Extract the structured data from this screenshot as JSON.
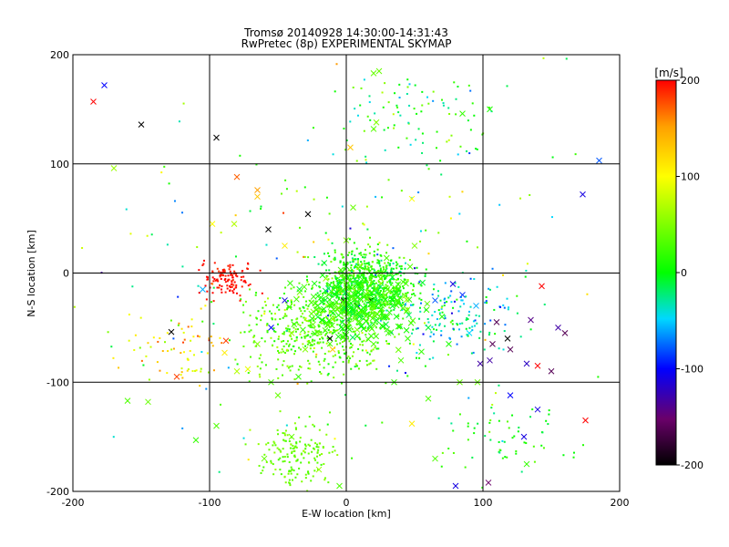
{
  "chart_data": {
    "type": "scatter",
    "title": "Tromsø 20140928 14:30:00-14:31:43",
    "subtitle": "RwPretec (8p) EXPERIMENTAL SKYMAP",
    "xlabel": "E-W location [km]",
    "ylabel": "N-S location [km]",
    "xlim": [
      -200,
      200
    ],
    "ylim": [
      -200,
      200
    ],
    "x_ticks": [
      -200,
      -100,
      0,
      100,
      200
    ],
    "y_ticks": [
      -200,
      -100,
      0,
      100,
      200
    ],
    "grid": true,
    "colorbar": {
      "label": "[m/s]",
      "range": [
        -200,
        200
      ],
      "ticks": [
        -200,
        -100,
        0,
        100,
        200
      ],
      "colormap": "black-purple-blue-cyan-green-yellow-red"
    },
    "marker_types": [
      "dot",
      "x"
    ],
    "points_x": [
      {
        "x": -185,
        "y": 157,
        "v": 200
      },
      {
        "x": -177,
        "y": 172,
        "v": -100
      },
      {
        "x": -150,
        "y": 136,
        "v": -200
      },
      {
        "x": -95,
        "y": 124,
        "v": -200
      },
      {
        "x": -80,
        "y": 88,
        "v": 170
      },
      {
        "x": -65,
        "y": 76,
        "v": 150
      },
      {
        "x": -65,
        "y": 70,
        "v": 130
      },
      {
        "x": -28,
        "y": 54,
        "v": -200
      },
      {
        "x": -98,
        "y": 45,
        "v": 100
      },
      {
        "x": -82,
        "y": 45,
        "v": 70
      },
      {
        "x": -57,
        "y": 40,
        "v": -200
      },
      {
        "x": -45,
        "y": 25,
        "v": 110
      },
      {
        "x": 3,
        "y": 115,
        "v": 130
      },
      {
        "x": 22,
        "y": 138,
        "v": 50
      },
      {
        "x": 48,
        "y": 68,
        "v": 100
      },
      {
        "x": 24,
        "y": 185,
        "v": 40
      },
      {
        "x": 20,
        "y": 183,
        "v": 40
      },
      {
        "x": -170,
        "y": 96,
        "v": 60
      },
      {
        "x": 20,
        "y": 132,
        "v": 30
      },
      {
        "x": 185,
        "y": 103,
        "v": -80
      },
      {
        "x": 173,
        "y": 72,
        "v": -110
      },
      {
        "x": 143,
        "y": -12,
        "v": 200
      },
      {
        "x": -128,
        "y": -54,
        "v": -200
      },
      {
        "x": -88,
        "y": -62,
        "v": 180
      },
      {
        "x": -89,
        "y": -73,
        "v": 110
      },
      {
        "x": -124,
        "y": -95,
        "v": 180
      },
      {
        "x": -160,
        "y": -117,
        "v": 30
      },
      {
        "x": -145,
        "y": -118,
        "v": 40
      },
      {
        "x": -110,
        "y": -153,
        "v": 20
      },
      {
        "x": -95,
        "y": -140,
        "v": 30
      },
      {
        "x": -50,
        "y": -112,
        "v": 40
      },
      {
        "x": -72,
        "y": -88,
        "v": 90
      },
      {
        "x": -12,
        "y": -60,
        "v": -200
      },
      {
        "x": -10,
        "y": -70,
        "v": 130
      },
      {
        "x": -5,
        "y": -17,
        "v": 110
      },
      {
        "x": -2,
        "y": -25,
        "v": -180
      },
      {
        "x": 8,
        "y": -30,
        "v": -200
      },
      {
        "x": 18,
        "y": -25,
        "v": -200
      },
      {
        "x": -35,
        "y": -95,
        "v": 20
      },
      {
        "x": 40,
        "y": -80,
        "v": 30
      },
      {
        "x": 55,
        "y": -72,
        "v": 20
      },
      {
        "x": 60,
        "y": -115,
        "v": 30
      },
      {
        "x": 35,
        "y": -100,
        "v": 20
      },
      {
        "x": 48,
        "y": -138,
        "v": 110
      },
      {
        "x": 65,
        "y": -170,
        "v": 30
      },
      {
        "x": 80,
        "y": -195,
        "v": -110
      },
      {
        "x": 83,
        "y": -100,
        "v": 40
      },
      {
        "x": 96,
        "y": -100,
        "v": 40
      },
      {
        "x": 98,
        "y": -83,
        "v": -130
      },
      {
        "x": 105,
        "y": -80,
        "v": -130
      },
      {
        "x": 107,
        "y": -65,
        "v": -160
      },
      {
        "x": 110,
        "y": -45,
        "v": -160
      },
      {
        "x": 118,
        "y": -60,
        "v": -200
      },
      {
        "x": 120,
        "y": -70,
        "v": -160
      },
      {
        "x": 132,
        "y": -83,
        "v": -120
      },
      {
        "x": 140,
        "y": -85,
        "v": 200
      },
      {
        "x": 120,
        "y": -112,
        "v": -100
      },
      {
        "x": 140,
        "y": -125,
        "v": -110
      },
      {
        "x": 130,
        "y": -150,
        "v": -110
      },
      {
        "x": 132,
        "y": -175,
        "v": 20
      },
      {
        "x": 104,
        "y": -192,
        "v": -150
      },
      {
        "x": 155,
        "y": -50,
        "v": -130
      },
      {
        "x": 160,
        "y": -55,
        "v": -160
      },
      {
        "x": 135,
        "y": -43,
        "v": -140
      },
      {
        "x": 175,
        "y": -135,
        "v": 200
      },
      {
        "x": 150,
        "y": -90,
        "v": -160
      },
      {
        "x": 105,
        "y": 150,
        "v": 10
      },
      {
        "x": 85,
        "y": 146,
        "v": 20
      },
      {
        "x": -40,
        "y": -150,
        "v": 40
      },
      {
        "x": -60,
        "y": -170,
        "v": 40
      },
      {
        "x": -20,
        "y": -180,
        "v": 60
      },
      {
        "x": -5,
        "y": -195,
        "v": 30
      },
      {
        "x": -55,
        "y": -100,
        "v": 30
      },
      {
        "x": -80,
        "y": -90,
        "v": 70
      },
      {
        "x": -30,
        "y": -70,
        "v": 50
      },
      {
        "x": -20,
        "y": -35,
        "v": 50
      },
      {
        "x": 25,
        "y": -5,
        "v": 40
      },
      {
        "x": 30,
        "y": -15,
        "v": 20
      },
      {
        "x": 10,
        "y": -45,
        "v": 30
      },
      {
        "x": -15,
        "y": -5,
        "v": 60
      },
      {
        "x": 50,
        "y": 25,
        "v": 50
      },
      {
        "x": 45,
        "y": -60,
        "v": 20
      },
      {
        "x": 70,
        "y": -40,
        "v": 15
      },
      {
        "x": 60,
        "y": -50,
        "v": -10
      },
      {
        "x": 75,
        "y": -65,
        "v": 10
      },
      {
        "x": 90,
        "y": -55,
        "v": -50
      },
      {
        "x": 95,
        "y": -30,
        "v": -60
      },
      {
        "x": 85,
        "y": -20,
        "v": -90
      },
      {
        "x": 78,
        "y": -10,
        "v": -110
      },
      {
        "x": 65,
        "y": -25,
        "v": -80
      },
      {
        "x": -45,
        "y": -25,
        "v": -110
      },
      {
        "x": -55,
        "y": -50,
        "v": -100
      },
      {
        "x": -105,
        "y": -15,
        "v": -60
      },
      {
        "x": 15,
        "y": -20,
        "v": 20
      },
      {
        "x": 0,
        "y": 30,
        "v": 50
      },
      {
        "x": 5,
        "y": 60,
        "v": 40
      },
      {
        "x": -40,
        "y": -55,
        "v": 60
      },
      {
        "x": -65,
        "y": -65,
        "v": 50
      },
      {
        "x": 20,
        "y": -65,
        "v": 30
      },
      {
        "x": 30,
        "y": -40,
        "v": 40
      }
    ]
  }
}
